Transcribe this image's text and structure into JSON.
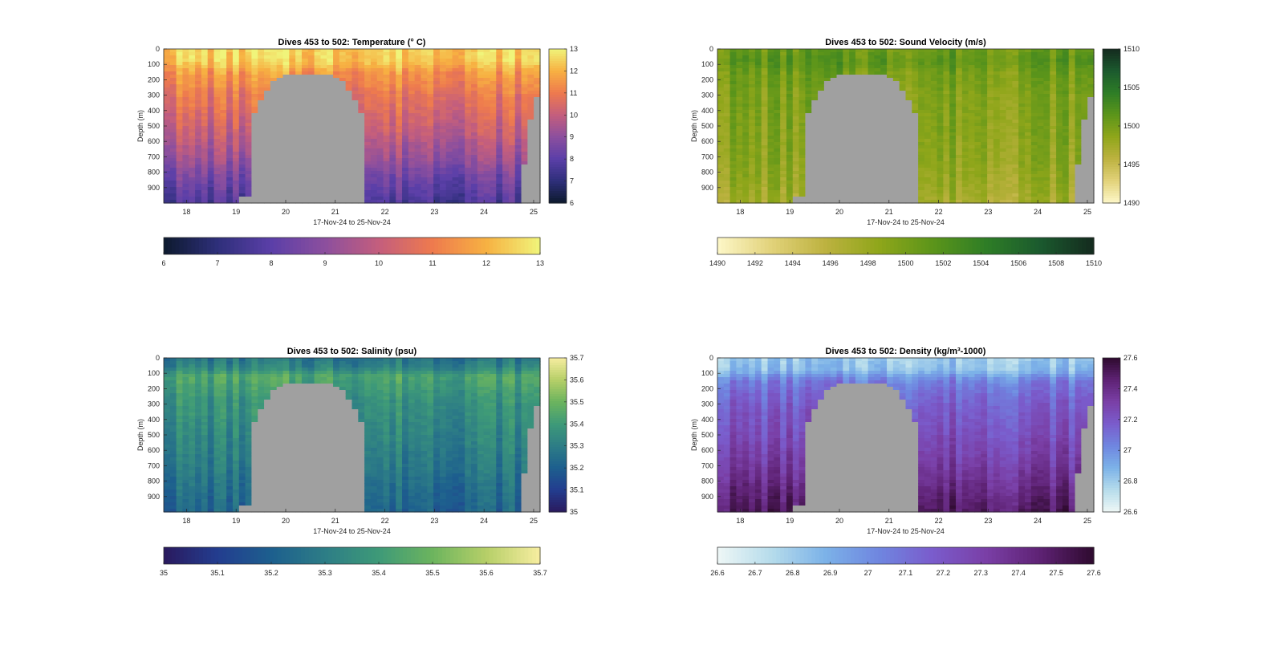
{
  "x_ticks": [
    "18",
    "19",
    "20",
    "21",
    "22",
    "23",
    "24",
    "25"
  ],
  "xlabel": "17-Nov-24 to 25-Nov-24",
  "ylabel": "Depth (m)",
  "y_ticks": [
    "0",
    "100",
    "200",
    "300",
    "400",
    "500",
    "600",
    "700",
    "800",
    "900"
  ],
  "mask_color": "#a0a0a0",
  "chart_data": [
    {
      "type": "heatmap",
      "variable": "temperature",
      "title": "Dives 453 to 502: Temperature (° C)",
      "xlabel": "17-Nov-24 to 25-Nov-24",
      "ylabel": "Depth (m)",
      "xlim": [
        "2024-11-17 13:00",
        "2024-11-25 03:00"
      ],
      "ylim": [
        0,
        1000
      ],
      "y_reversed": true,
      "color_range": [
        6,
        13
      ],
      "colormap": [
        "#0d1a2e",
        "#2e2f7a",
        "#5b3fa8",
        "#8c4f9e",
        "#c45e7d",
        "#ee7a4e",
        "#f7b142",
        "#f0f47a"
      ],
      "colorbar_ticks": [
        "13",
        "12",
        "11",
        "10",
        "9",
        "8",
        "7",
        "6"
      ],
      "hcolorbar_ticks": [
        "6",
        "7",
        "8",
        "9",
        "10",
        "11",
        "12",
        "13"
      ],
      "profile": [
        [
          0,
          12.5
        ],
        [
          80,
          12.4
        ],
        [
          150,
          11.6
        ],
        [
          300,
          10.9
        ],
        [
          500,
          10.2
        ],
        [
          700,
          9.3
        ],
        [
          850,
          8.4
        ],
        [
          1000,
          7.7
        ]
      ]
    },
    {
      "type": "heatmap",
      "variable": "sound_velocity",
      "title": "Dives 453 to 502: Sound Velocity (m/s)",
      "xlabel": "17-Nov-24 to 25-Nov-24",
      "ylabel": "Depth (m)",
      "xlim": [
        "2024-11-17 13:00",
        "2024-11-25 03:00"
      ],
      "ylim": [
        0,
        1000
      ],
      "y_reversed": true,
      "color_range": [
        1490,
        1510
      ],
      "colormap": [
        "#fdf7c8",
        "#e2d27a",
        "#bdb240",
        "#8fa61a",
        "#5c951a",
        "#2e7d26",
        "#1b5a2e",
        "#142a1e"
      ],
      "colorbar_ticks": [
        "1510",
        "1505",
        "1500",
        "1495",
        "1490"
      ],
      "hcolorbar_ticks": [
        "1490",
        "1492",
        "1494",
        "1496",
        "1498",
        "1500",
        "1502",
        "1504",
        "1506",
        "1508",
        "1510"
      ],
      "profile": [
        [
          0,
          1500.5
        ],
        [
          80,
          1501.5
        ],
        [
          150,
          1500.2
        ],
        [
          300,
          1499.5
        ],
        [
          500,
          1499.2
        ],
        [
          700,
          1498.8
        ],
        [
          850,
          1498.2
        ],
        [
          1000,
          1497.2
        ]
      ]
    },
    {
      "type": "heatmap",
      "variable": "salinity",
      "title": "Dives 453 to 502: Salinity (psu)",
      "xlabel": "17-Nov-24 to 25-Nov-24",
      "ylabel": "Depth (m)",
      "xlim": [
        "2024-11-17 13:00",
        "2024-11-25 03:00"
      ],
      "ylim": [
        0,
        1000
      ],
      "y_reversed": true,
      "color_range": [
        35,
        35.7
      ],
      "colormap": [
        "#2a1a5e",
        "#233d8f",
        "#1d5f8e",
        "#2d7d86",
        "#3e9a78",
        "#6cb45e",
        "#b6cf68",
        "#f7eda0"
      ],
      "colorbar_ticks": [
        "35.7",
        "35.6",
        "35.5",
        "35.4",
        "35.3",
        "35.2",
        "35.1",
        "35"
      ],
      "hcolorbar_ticks": [
        "35",
        "35.1",
        "35.2",
        "35.3",
        "35.4",
        "35.5",
        "35.6",
        "35.7"
      ],
      "profile": [
        [
          0,
          35.27
        ],
        [
          60,
          35.32
        ],
        [
          120,
          35.44
        ],
        [
          250,
          35.38
        ],
        [
          500,
          35.33
        ],
        [
          700,
          35.29
        ],
        [
          850,
          35.25
        ],
        [
          1000,
          35.22
        ]
      ]
    },
    {
      "type": "heatmap",
      "variable": "density",
      "title": "Dives 453 to 502: Density (kg/m³-1000)",
      "xlabel": "17-Nov-24 to 25-Nov-24",
      "ylabel": "Depth (m)",
      "xlim": [
        "2024-11-17 13:00",
        "2024-11-25 03:00"
      ],
      "ylim": [
        0,
        1000
      ],
      "y_reversed": true,
      "color_range": [
        26.6,
        27.6
      ],
      "colormap": [
        "#eef7f6",
        "#b6dceb",
        "#7cb2e8",
        "#6f86e0",
        "#7a5ccc",
        "#7a3fa6",
        "#5e2274",
        "#2e0a2e"
      ],
      "colorbar_ticks": [
        "27.6",
        "27.4",
        "27.2",
        "27",
        "26.8",
        "26.6"
      ],
      "hcolorbar_ticks": [
        "26.6",
        "26.7",
        "26.8",
        "26.9",
        "27",
        "27.1",
        "27.2",
        "27.3",
        "27.4",
        "27.5",
        "27.6"
      ],
      "profile": [
        [
          0,
          26.8
        ],
        [
          80,
          26.85
        ],
        [
          150,
          27.05
        ],
        [
          300,
          27.17
        ],
        [
          500,
          27.24
        ],
        [
          700,
          27.33
        ],
        [
          850,
          27.42
        ],
        [
          1000,
          27.5
        ]
      ]
    }
  ]
}
